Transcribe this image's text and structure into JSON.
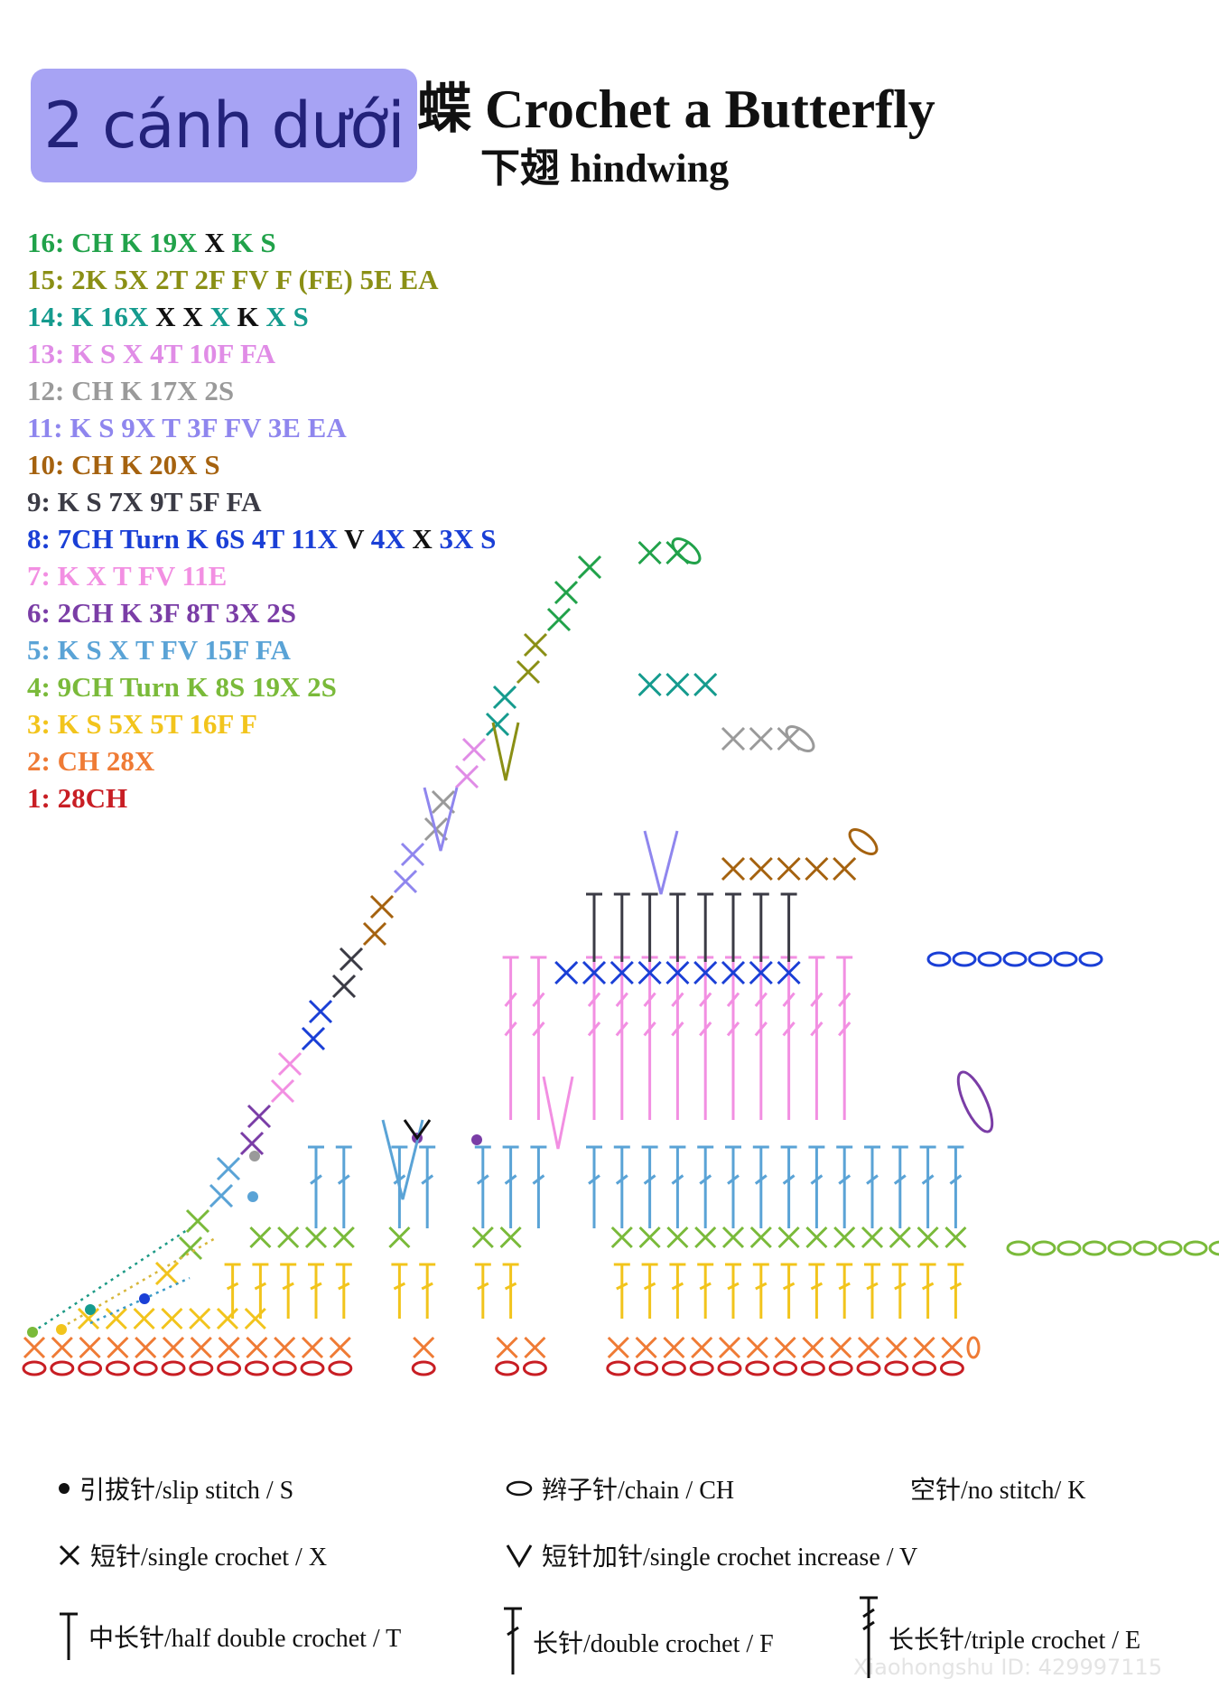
{
  "badge_label": "2 cánh dưới",
  "title_glyph": "蝶",
  "title": "Crochet a Butterfly",
  "subtitle": "下翅 hindwing",
  "rounds": [
    {
      "color": "#21a24a",
      "parts": [
        {
          "t": "16: CH K 19X "
        },
        {
          "t": "X",
          "dark": true
        },
        {
          "t": " K S"
        }
      ]
    },
    {
      "color": "#8a8f15",
      "parts": [
        {
          "t": "15: 2K 5X 2T 2F FV F (FE) 5E EA"
        }
      ]
    },
    {
      "color": "#159b8e",
      "parts": [
        {
          "t": "14: K 16X "
        },
        {
          "t": "X X",
          "dark": true
        },
        {
          "t": " X "
        },
        {
          "t": "K",
          "dark": true
        },
        {
          "t": " X S"
        }
      ]
    },
    {
      "color": "#e08ce6",
      "parts": [
        {
          "t": "13: K S X 4T 10F FA"
        }
      ]
    },
    {
      "color": "#9a9a9a",
      "parts": [
        {
          "t": "12: CH K 17X 2S"
        }
      ]
    },
    {
      "color": "#8f86ee",
      "parts": [
        {
          "t": "11: K S 9X T 3F FV 3E EA"
        }
      ]
    },
    {
      "color": "#a5620f",
      "parts": [
        {
          "t": "10: CH K 20X S"
        }
      ]
    },
    {
      "color": "#3b3b45",
      "parts": [
        {
          "t": "9: K S 7X 9T 5F FA"
        }
      ]
    },
    {
      "color": "#1a3fd6",
      "parts": [
        {
          "t": "8: 7CH Turn K 6S 4T 11X "
        },
        {
          "t": "V",
          "dark": true
        },
        {
          "t": " 4X "
        },
        {
          "t": "X",
          "dark": true
        },
        {
          "t": " 3X S"
        }
      ]
    },
    {
      "color": "#f28fe2",
      "parts": [
        {
          "t": "7: K X T FV 11E"
        }
      ]
    },
    {
      "color": "#7a3da6",
      "parts": [
        {
          "t": "6: 2CH K 3F 8T 3X 2S"
        }
      ]
    },
    {
      "color": "#5aa3d6",
      "parts": [
        {
          "t": "5: K S X T FV 15F FA"
        }
      ]
    },
    {
      "color": "#7aba3a",
      "parts": [
        {
          "t": "4: 9CH Turn K 8S 19X 2S"
        }
      ]
    },
    {
      "color": "#f2c41c",
      "parts": [
        {
          "t": "3: K S 5X 5T 16F F"
        }
      ]
    },
    {
      "color": "#ef7b35",
      "parts": [
        {
          "t": "2: CH 28X"
        }
      ]
    },
    {
      "color": "#c81e24",
      "parts": [
        {
          "t": "1: 28CH"
        }
      ]
    }
  ],
  "legend": {
    "slip": "引拔针/slip stitch / S",
    "chain": "辫子针/chain / CH",
    "nostitch": "空针/no stitch/ K",
    "sc": "短针/single crochet / X",
    "sc_inc": "短针加针/single crochet increase / V",
    "hdc": "中长针/half double crochet / T",
    "dc": "长针/double crochet / F",
    "tr": "长长针/triple crochet / E"
  },
  "watermark": "Xiaohongshu ID: 429997115",
  "colors": {
    "badge_bg": "#a7a3f4",
    "badge_text": "#23227a",
    "r1": "#c81e24",
    "r2": "#ef7b35",
    "r3": "#f2c41c",
    "r4": "#7aba3a",
    "r5": "#5aa3d6",
    "r6": "#7a3da6",
    "r7": "#f28fe2",
    "r8": "#1a3fd6",
    "r9": "#3b3b45",
    "r10": "#a5620f",
    "r11": "#8f86ee",
    "r12": "#9a9a9a",
    "r13": "#e08ce6",
    "r14": "#159b8e",
    "r15": "#8a8f15",
    "r16": "#21a24a"
  }
}
